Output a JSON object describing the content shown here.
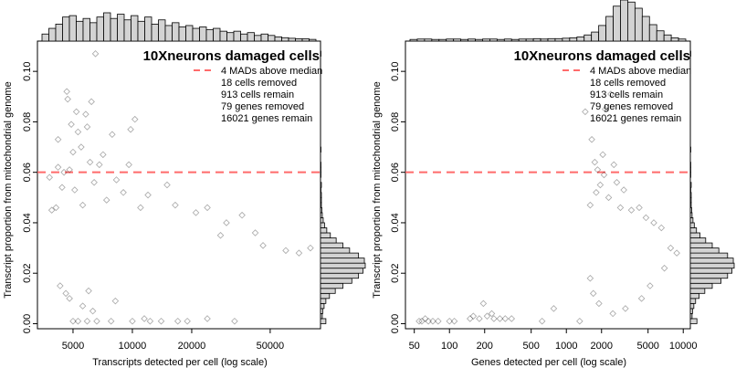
{
  "colors": {
    "threshold": "#ff6b6b",
    "points": "#000000",
    "hist_fill": "#d3d3d3",
    "axis": "#000000"
  },
  "chart_data": [
    {
      "type": "scatter",
      "title": "10Xneurons damaged cells",
      "xlabel": "Transcripts detected per cell (log scale)",
      "ylabel": "Transcript proportion from mitochondrial genome",
      "x_scale": "log",
      "xlim": [
        3300,
        90000
      ],
      "ylim": [
        -0.002,
        0.112
      ],
      "x_ticks": [
        5000,
        10000,
        20000,
        50000
      ],
      "x_tick_labels": [
        "5000",
        "10000",
        "20000",
        "50000"
      ],
      "y_ticks": [
        0.0,
        0.02,
        0.04,
        0.06,
        0.08,
        0.1
      ],
      "y_tick_labels": [
        "0.00",
        "0.02",
        "0.04",
        "0.06",
        "0.08",
        "0.10"
      ],
      "threshold": 0.06,
      "legend": {
        "position": "top-right",
        "lines": [
          "4 MADs above median",
          "18 cells removed",
          "913 cells remain",
          "79 genes removed",
          "16021 genes remain"
        ]
      },
      "top_histogram": [
        0.25,
        0.45,
        0.6,
        0.85,
        0.9,
        0.7,
        0.8,
        0.65,
        0.85,
        1.0,
        0.8,
        0.95,
        0.75,
        0.9,
        0.7,
        0.85,
        0.6,
        0.75,
        0.55,
        0.65,
        0.5,
        0.55,
        0.45,
        0.5,
        0.4,
        0.45,
        0.35,
        0.3,
        0.35,
        0.25,
        0.3,
        0.2,
        0.25,
        0.2,
        0.15,
        0.12,
        0.1,
        0.08,
        0.08,
        0.06
      ],
      "right_histogram": {
        "bin_start": 0.0,
        "bin_width": 0.002,
        "counts": [
          0.12,
          0.04,
          0.05,
          0.08,
          0.12,
          0.2,
          0.33,
          0.5,
          0.7,
          0.85,
          0.95,
          1.0,
          0.98,
          0.85,
          0.65,
          0.5,
          0.35,
          0.22,
          0.14,
          0.09,
          0.06,
          0.04,
          0.03,
          0.02,
          0.02,
          0.02,
          0.01,
          0.02,
          0.0,
          0.01,
          0.01,
          0.01,
          0.0,
          0.0,
          0.01,
          0.0,
          0.0,
          0.0,
          0.0,
          0.0,
          0.0,
          0.0,
          0.0,
          0.0,
          0.0,
          0.0,
          0.0,
          0.0,
          0.0,
          0.0,
          0.0,
          0.0,
          0.0,
          0.01
        ]
      },
      "points": [
        [
          6500,
          0.107
        ],
        [
          4650,
          0.092
        ],
        [
          4700,
          0.089
        ],
        [
          6200,
          0.088
        ],
        [
          5200,
          0.084
        ],
        [
          5800,
          0.083
        ],
        [
          10300,
          0.081
        ],
        [
          4900,
          0.079
        ],
        [
          5900,
          0.078
        ],
        [
          9800,
          0.077
        ],
        [
          5300,
          0.076
        ],
        [
          7900,
          0.075
        ],
        [
          4200,
          0.073
        ],
        [
          5500,
          0.07
        ],
        [
          5000,
          0.068
        ],
        [
          7100,
          0.067
        ],
        [
          6100,
          0.064
        ],
        [
          9600,
          0.063
        ],
        [
          6800,
          0.063
        ],
        [
          4200,
          0.062
        ],
        [
          4500,
          0.06
        ],
        [
          4800,
          0.061
        ],
        [
          3800,
          0.058
        ],
        [
          6400,
          0.056
        ],
        [
          8300,
          0.057
        ],
        [
          15000,
          0.055
        ],
        [
          4400,
          0.054
        ],
        [
          5100,
          0.053
        ],
        [
          9000,
          0.052
        ],
        [
          12000,
          0.051
        ],
        [
          24000,
          0.046
        ],
        [
          36000,
          0.043
        ],
        [
          3900,
          0.045
        ],
        [
          4100,
          0.046
        ],
        [
          5600,
          0.047
        ],
        [
          7400,
          0.049
        ],
        [
          11000,
          0.046
        ],
        [
          16500,
          0.047
        ],
        [
          21000,
          0.044
        ],
        [
          30000,
          0.04
        ],
        [
          42000,
          0.036
        ],
        [
          28000,
          0.035
        ],
        [
          46000,
          0.031
        ],
        [
          60000,
          0.029
        ],
        [
          70000,
          0.028
        ],
        [
          80000,
          0.03
        ],
        [
          4600,
          0.012
        ],
        [
          4800,
          0.01
        ],
        [
          5600,
          0.007
        ],
        [
          6300,
          0.005
        ],
        [
          5000,
          0.001
        ],
        [
          5300,
          0.001
        ],
        [
          5900,
          0.001
        ],
        [
          6600,
          0.001
        ],
        [
          7800,
          0.001
        ],
        [
          10000,
          0.001
        ],
        [
          11500,
          0.002
        ],
        [
          12300,
          0.001
        ],
        [
          14000,
          0.001
        ],
        [
          17000,
          0.001
        ],
        [
          19000,
          0.001
        ],
        [
          24000,
          0.002
        ],
        [
          33000,
          0.001
        ],
        [
          4300,
          0.015
        ],
        [
          8200,
          0.009
        ],
        [
          6000,
          0.013
        ]
      ]
    },
    {
      "type": "scatter",
      "title": "10Xneurons damaged cells",
      "xlabel": "Genes detected per cell (log scale)",
      "ylabel": "Transcript proportion from mitochondrial genome",
      "x_scale": "log",
      "xlim": [
        42,
        11500
      ],
      "ylim": [
        -0.002,
        0.112
      ],
      "x_ticks": [
        50,
        100,
        200,
        500,
        1000,
        2000,
        5000,
        10000
      ],
      "x_tick_labels": [
        "50",
        "100",
        "200",
        "500",
        "1000",
        "2000",
        "5000",
        "10000"
      ],
      "y_ticks": [
        0.0,
        0.02,
        0.04,
        0.06,
        0.08,
        0.1
      ],
      "y_tick_labels": [
        "0.00",
        "0.02",
        "0.04",
        "0.06",
        "0.08",
        "0.10"
      ],
      "threshold": 0.06,
      "legend": {
        "position": "top-right",
        "lines": [
          "4 MADs above median",
          "18 cells removed",
          "913 cells remain",
          "79 genes removed",
          "16021 genes remain"
        ]
      },
      "top_histogram": [
        0.04,
        0.05,
        0.05,
        0.04,
        0.04,
        0.05,
        0.05,
        0.04,
        0.05,
        0.04,
        0.05,
        0.05,
        0.04,
        0.05,
        0.04,
        0.05,
        0.05,
        0.06,
        0.05,
        0.06,
        0.06,
        0.07,
        0.08,
        0.1,
        0.15,
        0.22,
        0.38,
        0.6,
        0.85,
        1.0,
        0.95,
        0.8,
        0.6,
        0.4,
        0.25,
        0.15,
        0.08,
        0.05
      ],
      "right_histogram": {
        "bin_start": 0.0,
        "bin_width": 0.002,
        "counts": [
          0.15,
          0.04,
          0.05,
          0.08,
          0.12,
          0.2,
          0.33,
          0.5,
          0.7,
          0.85,
          0.95,
          1.0,
          0.98,
          0.85,
          0.65,
          0.5,
          0.35,
          0.22,
          0.14,
          0.09,
          0.06,
          0.04,
          0.03,
          0.02,
          0.02,
          0.02,
          0.01,
          0.02,
          0.0,
          0.01,
          0.01,
          0.01,
          0.0,
          0.0,
          0.01,
          0.0,
          0.0,
          0.0,
          0.0,
          0.0,
          0.0,
          0.0,
          0.0,
          0.0,
          0.0,
          0.0,
          0.0,
          0.0,
          0.0,
          0.0,
          0.0,
          0.0,
          0.0,
          0.01
        ]
      },
      "points": [
        [
          55,
          0.001
        ],
        [
          58,
          0.001
        ],
        [
          62,
          0.002
        ],
        [
          66,
          0.001
        ],
        [
          72,
          0.001
        ],
        [
          80,
          0.001
        ],
        [
          100,
          0.001
        ],
        [
          110,
          0.001
        ],
        [
          150,
          0.002
        ],
        [
          160,
          0.003
        ],
        [
          180,
          0.002
        ],
        [
          195,
          0.008
        ],
        [
          210,
          0.003
        ],
        [
          230,
          0.004
        ],
        [
          240,
          0.002
        ],
        [
          270,
          0.002
        ],
        [
          300,
          0.002
        ],
        [
          340,
          0.002
        ],
        [
          620,
          0.001
        ],
        [
          780,
          0.006
        ],
        [
          1300,
          0.001
        ],
        [
          1450,
          0.084
        ],
        [
          2150,
          0.085
        ],
        [
          2400,
          0.091
        ],
        [
          1650,
          0.073
        ],
        [
          2050,
          0.067
        ],
        [
          1750,
          0.064
        ],
        [
          2550,
          0.063
        ],
        [
          1850,
          0.061
        ],
        [
          2100,
          0.059
        ],
        [
          2700,
          0.056
        ],
        [
          3100,
          0.053
        ],
        [
          1950,
          0.055
        ],
        [
          1800,
          0.052
        ],
        [
          2300,
          0.05
        ],
        [
          1600,
          0.047
        ],
        [
          2900,
          0.046
        ],
        [
          3600,
          0.045
        ],
        [
          4200,
          0.046
        ],
        [
          4800,
          0.042
        ],
        [
          5600,
          0.04
        ],
        [
          6500,
          0.038
        ],
        [
          7800,
          0.03
        ],
        [
          8800,
          0.028
        ],
        [
          6900,
          0.022
        ],
        [
          5200,
          0.015
        ],
        [
          4400,
          0.01
        ],
        [
          3200,
          0.006
        ],
        [
          2500,
          0.004
        ],
        [
          1900,
          0.008
        ],
        [
          1700,
          0.012
        ],
        [
          1600,
          0.018
        ]
      ]
    }
  ]
}
